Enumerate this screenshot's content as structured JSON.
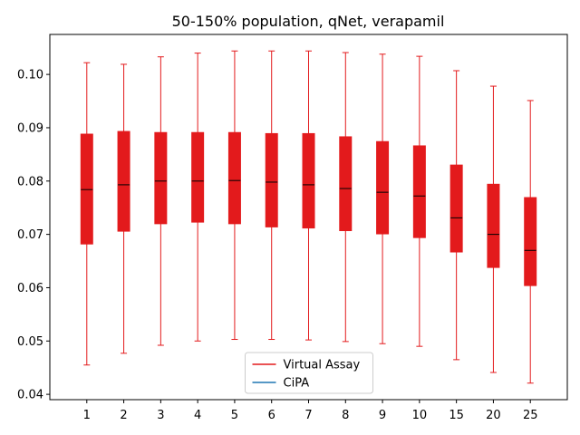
{
  "chart_data": {
    "type": "box",
    "title": "50-150% population, qNet, verapamil",
    "xlabel": "",
    "ylabel": "",
    "categories": [
      "1",
      "2",
      "3",
      "4",
      "5",
      "6",
      "7",
      "8",
      "9",
      "10",
      "15",
      "20",
      "25"
    ],
    "ylim": [
      0.039,
      0.1075
    ],
    "yticks": [
      0.04,
      0.05,
      0.06,
      0.07,
      0.08,
      0.09,
      0.1
    ],
    "ytick_labels": [
      "0.04",
      "0.05",
      "0.06",
      "0.07",
      "0.08",
      "0.09",
      "0.10"
    ],
    "series": [
      {
        "name": "Virtual Assay",
        "color": "#e31a1c",
        "boxes": [
          {
            "min": 0.0455,
            "q1": 0.0682,
            "median": 0.0784,
            "q3": 0.0888,
            "max": 0.1022
          },
          {
            "min": 0.0477,
            "q1": 0.0706,
            "median": 0.0793,
            "q3": 0.0893,
            "max": 0.1019
          },
          {
            "min": 0.0492,
            "q1": 0.072,
            "median": 0.08,
            "q3": 0.0891,
            "max": 0.1033
          },
          {
            "min": 0.05,
            "q1": 0.0723,
            "median": 0.08,
            "q3": 0.0891,
            "max": 0.104
          },
          {
            "min": 0.0503,
            "q1": 0.072,
            "median": 0.0801,
            "q3": 0.0891,
            "max": 0.1044
          },
          {
            "min": 0.0503,
            "q1": 0.0714,
            "median": 0.0798,
            "q3": 0.0889,
            "max": 0.1044
          },
          {
            "min": 0.0502,
            "q1": 0.0712,
            "median": 0.0793,
            "q3": 0.0889,
            "max": 0.1044
          },
          {
            "min": 0.0499,
            "q1": 0.0707,
            "median": 0.0786,
            "q3": 0.0883,
            "max": 0.1041
          },
          {
            "min": 0.0495,
            "q1": 0.0701,
            "median": 0.0779,
            "q3": 0.0874,
            "max": 0.1038
          },
          {
            "min": 0.049,
            "q1": 0.0694,
            "median": 0.0772,
            "q3": 0.0866,
            "max": 0.1034
          },
          {
            "min": 0.0465,
            "q1": 0.0667,
            "median": 0.0731,
            "q3": 0.083,
            "max": 0.1007
          },
          {
            "min": 0.0441,
            "q1": 0.0638,
            "median": 0.07,
            "q3": 0.0794,
            "max": 0.0978
          },
          {
            "min": 0.0421,
            "q1": 0.0604,
            "median": 0.067,
            "q3": 0.0769,
            "max": 0.0951
          }
        ]
      },
      {
        "name": "CiPA",
        "color": "#1f77b4",
        "boxes": []
      }
    ],
    "legend": {
      "placement": "bottom-center",
      "entries": [
        {
          "label": "Virtual Assay",
          "color": "#e31a1c"
        },
        {
          "label": "CiPA",
          "color": "#1f77b4"
        }
      ]
    },
    "grid": false
  }
}
